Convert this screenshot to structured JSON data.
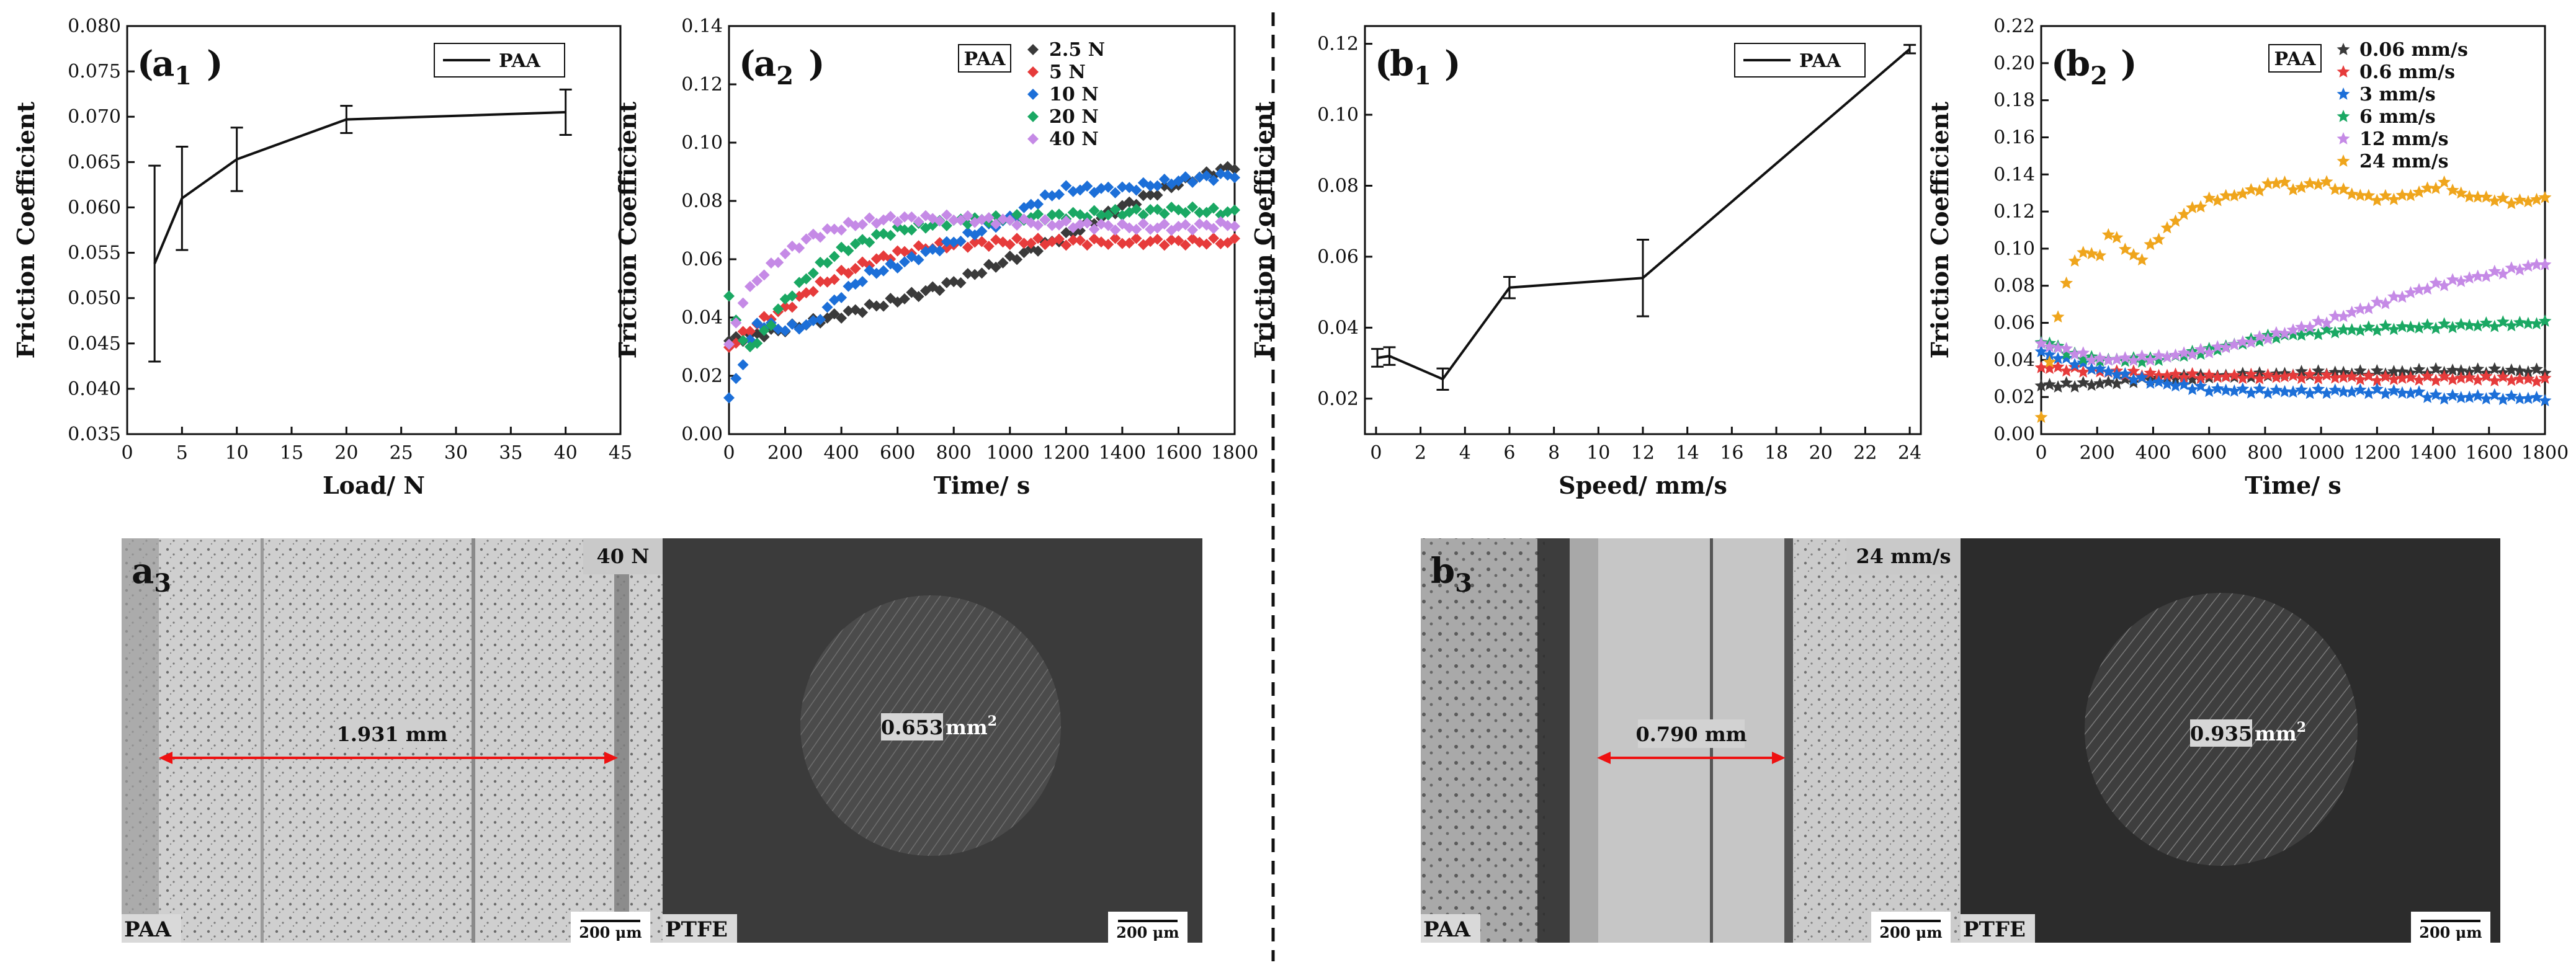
{
  "chart_data": [
    {
      "id": "a1",
      "type": "line",
      "panel_label": "a",
      "panel_sub": "1",
      "xlabel": "Load/ N",
      "ylabel": "Friction Coefficient",
      "xlim": [
        0,
        45
      ],
      "ylim": [
        0.035,
        0.08
      ],
      "xticks": [
        0,
        5,
        10,
        15,
        20,
        25,
        30,
        35,
        40,
        45
      ],
      "yticks": [
        0.035,
        0.04,
        0.045,
        0.05,
        0.055,
        0.06,
        0.065,
        0.07,
        0.075,
        0.08
      ],
      "ytick_labels": [
        "0.035",
        "0.040",
        "0.045",
        "0.050",
        "0.055",
        "0.060",
        "0.065",
        "0.070",
        "0.075",
        "0.080"
      ],
      "legend": "PAA",
      "series": [
        {
          "name": "PAA",
          "x": [
            2.5,
            5,
            10,
            20,
            40
          ],
          "y": [
            0.0538,
            0.061,
            0.0653,
            0.0697,
            0.0705
          ],
          "err": [
            0.0108,
            0.0057,
            0.0035,
            0.0015,
            0.0025
          ]
        }
      ]
    },
    {
      "id": "a2",
      "type": "scatter",
      "panel_label": "a",
      "panel_sub": "2",
      "xlabel": "Time/ s",
      "ylabel": "Friction Coefficient",
      "xlim": [
        0,
        1800
      ],
      "ylim": [
        0,
        0.14
      ],
      "xticks": [
        0,
        200,
        400,
        600,
        800,
        1000,
        1200,
        1400,
        1600,
        1800
      ],
      "yticks": [
        0,
        0.02,
        0.04,
        0.06,
        0.08,
        0.1,
        0.12,
        0.14
      ],
      "ytick_labels": [
        "0.00",
        "0.02",
        "0.04",
        "0.06",
        "0.08",
        "0.10",
        "0.12",
        "0.14"
      ],
      "legend_title": "PAA",
      "marker": "diamond",
      "series": [
        {
          "name": "2.5 N",
          "color": "#3a3a3a",
          "t": [
            0,
            200,
            400,
            600,
            800,
            1000,
            1200,
            1400,
            1600,
            1800
          ],
          "y": [
            0.032,
            0.036,
            0.041,
            0.046,
            0.052,
            0.06,
            0.068,
            0.078,
            0.086,
            0.092
          ]
        },
        {
          "name": "5 N",
          "color": "#e63b3b",
          "t": [
            0,
            100,
            200,
            300,
            400,
            500,
            600,
            700,
            800,
            1000,
            1200,
            1400,
            1600,
            1800
          ],
          "y": [
            0.03,
            0.038,
            0.043,
            0.05,
            0.055,
            0.059,
            0.062,
            0.064,
            0.065,
            0.066,
            0.066,
            0.066,
            0.066,
            0.066
          ]
        },
        {
          "name": "10 N",
          "color": "#1c6fd8",
          "t": [
            0,
            100,
            200,
            300,
            400,
            500,
            600,
            800,
            1000,
            1100,
            1200,
            1400,
            1600,
            1800
          ],
          "y": [
            0.012,
            0.038,
            0.036,
            0.038,
            0.048,
            0.055,
            0.058,
            0.066,
            0.074,
            0.08,
            0.084,
            0.084,
            0.087,
            0.089
          ]
        },
        {
          "name": "20 N",
          "color": "#1aa863",
          "t": [
            0,
            50,
            100,
            200,
            300,
            400,
            500,
            600,
            800,
            1000,
            1200,
            1400,
            1600,
            1800
          ],
          "y": [
            0.048,
            0.031,
            0.031,
            0.046,
            0.056,
            0.063,
            0.067,
            0.07,
            0.073,
            0.074,
            0.075,
            0.076,
            0.077,
            0.076
          ]
        },
        {
          "name": "40 N",
          "color": "#c58ae6",
          "t": [
            0,
            50,
            100,
            200,
            300,
            400,
            500,
            600,
            800,
            1000,
            1200,
            1400,
            1600,
            1800
          ],
          "y": [
            0.03,
            0.046,
            0.053,
            0.062,
            0.068,
            0.071,
            0.073,
            0.074,
            0.074,
            0.073,
            0.072,
            0.071,
            0.071,
            0.072
          ]
        }
      ]
    },
    {
      "id": "b1",
      "type": "line",
      "panel_label": "b",
      "panel_sub": "1",
      "xlabel": "Speed/ mm/s",
      "ylabel": "Friction Coefficient",
      "xlim": [
        -0.5,
        24.5
      ],
      "ylim": [
        0.01,
        0.125
      ],
      "xticks": [
        0,
        2,
        4,
        6,
        8,
        10,
        12,
        14,
        16,
        18,
        20,
        22,
        24
      ],
      "yticks": [
        0.02,
        0.04,
        0.06,
        0.08,
        0.1,
        0.12
      ],
      "ytick_labels": [
        "0.02",
        "0.04",
        "0.06",
        "0.08",
        "0.10",
        "0.12"
      ],
      "legend": "PAA",
      "series": [
        {
          "name": "PAA",
          "x": [
            0.06,
            0.6,
            3,
            6,
            12,
            24
          ],
          "y": [
            0.0315,
            0.032,
            0.0255,
            0.0513,
            0.054,
            0.1185
          ],
          "err": [
            0.0025,
            0.0025,
            0.003,
            0.003,
            0.0108,
            0.0012
          ]
        }
      ]
    },
    {
      "id": "b2",
      "type": "scatter",
      "panel_label": "b",
      "panel_sub": "2",
      "xlabel": "Time/ s",
      "ylabel": "Friction Coefficient",
      "xlim": [
        0,
        1800
      ],
      "ylim": [
        0,
        0.22
      ],
      "xticks": [
        0,
        200,
        400,
        600,
        800,
        1000,
        1200,
        1400,
        1600,
        1800
      ],
      "yticks": [
        0,
        0.02,
        0.04,
        0.06,
        0.08,
        0.1,
        0.12,
        0.14,
        0.16,
        0.18,
        0.2,
        0.22
      ],
      "ytick_labels": [
        "0.00",
        "0.02",
        "0.04",
        "0.06",
        "0.08",
        "0.10",
        "0.12",
        "0.14",
        "0.16",
        "0.18",
        "0.20",
        "0.22"
      ],
      "legend_title": "PAA",
      "marker": "star",
      "series": [
        {
          "name": "0.06 mm/s",
          "color": "#3a3a3a",
          "t": [
            0,
            200,
            400,
            600,
            800,
            1000,
            1200,
            1400,
            1600,
            1800
          ],
          "y": [
            0.026,
            0.027,
            0.03,
            0.031,
            0.032,
            0.033,
            0.033,
            0.034,
            0.034,
            0.034
          ]
        },
        {
          "name": "0.6 mm/s",
          "color": "#e63b3b",
          "t": [
            0,
            200,
            400,
            600,
            800,
            1000,
            1200,
            1400,
            1600,
            1800
          ],
          "y": [
            0.036,
            0.034,
            0.032,
            0.031,
            0.031,
            0.031,
            0.03,
            0.03,
            0.03,
            0.029
          ]
        },
        {
          "name": "3 mm/s",
          "color": "#1c6fd8",
          "t": [
            0,
            200,
            400,
            600,
            800,
            1000,
            1200,
            1350,
            1400,
            1600,
            1800
          ],
          "y": [
            0.044,
            0.035,
            0.028,
            0.024,
            0.023,
            0.023,
            0.023,
            0.022,
            0.02,
            0.02,
            0.019
          ]
        },
        {
          "name": "6 mm/s",
          "color": "#1aa863",
          "t": [
            0,
            50,
            100,
            200,
            400,
            600,
            800,
            1000,
            1200,
            1400,
            1600,
            1800
          ],
          "y": [
            0.05,
            0.048,
            0.043,
            0.04,
            0.04,
            0.045,
            0.052,
            0.055,
            0.057,
            0.058,
            0.059,
            0.06
          ]
        },
        {
          "name": "12 mm/s",
          "color": "#c58ae6",
          "t": [
            0,
            50,
            100,
            200,
            400,
            600,
            800,
            1000,
            1200,
            1400,
            1600,
            1800
          ],
          "y": [
            0.048,
            0.047,
            0.045,
            0.04,
            0.041,
            0.045,
            0.052,
            0.06,
            0.07,
            0.08,
            0.086,
            0.092
          ]
        },
        {
          "name": "24 mm/s",
          "color": "#efa51c",
          "t": [
            0,
            50,
            100,
            150,
            200,
            250,
            300,
            350,
            400,
            500,
            600,
            700,
            800,
            850,
            900,
            1000,
            1100,
            1200,
            1300,
            1400,
            1450,
            1500,
            1600,
            1700,
            1800
          ],
          "y": [
            0.01,
            0.057,
            0.088,
            0.099,
            0.094,
            0.11,
            0.1,
            0.093,
            0.103,
            0.118,
            0.126,
            0.129,
            0.133,
            0.137,
            0.132,
            0.136,
            0.13,
            0.127,
            0.128,
            0.133,
            0.135,
            0.129,
            0.127,
            0.125,
            0.127
          ]
        }
      ]
    }
  ],
  "images": {
    "a3": {
      "panel_label": "a",
      "panel_sub": "3",
      "condition": "40 N",
      "width_label": "1.931 mm",
      "left_material": "PAA",
      "right_material": "PTFE",
      "area_label": "0.653",
      "area_unit": "mm",
      "area_exp": "2",
      "scalebar": "200 μm"
    },
    "b3": {
      "panel_label": "b",
      "panel_sub": "3",
      "condition": "24 mm/s",
      "width_label": "0.790 mm",
      "left_material": "PAA",
      "right_material": "PTFE",
      "area_label": "0.935",
      "area_unit": "mm",
      "area_exp": "2",
      "scalebar": "200 μm"
    }
  }
}
